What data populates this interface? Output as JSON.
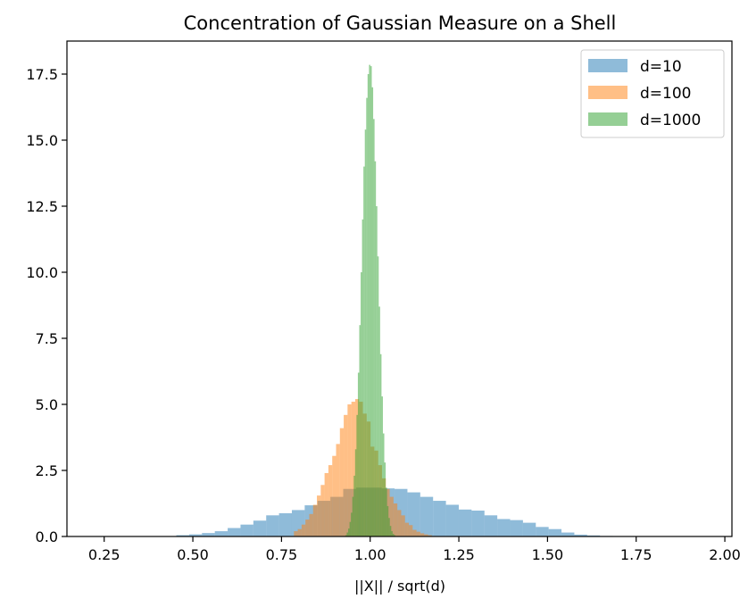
{
  "chart_data": {
    "type": "bar",
    "title": "Concentration of Gaussian Measure on a Shell",
    "xlabel": "||X|| / sqrt(d)",
    "ylabel": "",
    "xlim": [
      0.145,
      2.02
    ],
    "ylim": [
      0,
      18.75
    ],
    "xticks": [
      0.25,
      0.5,
      0.75,
      1.0,
      1.25,
      1.5,
      1.75,
      2.0
    ],
    "xtick_labels": [
      "0.25",
      "0.50",
      "0.75",
      "1.00",
      "1.25",
      "1.50",
      "1.75",
      "2.00"
    ],
    "yticks": [
      0,
      2.5,
      5,
      7.5,
      10,
      12.5,
      15,
      17.5
    ],
    "ytick_labels": [
      "0.0",
      "2.5",
      "5.0",
      "7.5",
      "10.0",
      "12.5",
      "15.0",
      "17.5"
    ],
    "legend_position": "top-right",
    "series": [
      {
        "name": "d=10",
        "color": "#1f77b4",
        "bin_start": 0.2,
        "bin_width": 0.0362,
        "values": [
          0.01,
          0.0,
          0.0,
          0.0,
          0.0,
          0.0,
          0.0,
          0.05,
          0.08,
          0.13,
          0.2,
          0.32,
          0.45,
          0.6,
          0.8,
          0.88,
          1.0,
          1.18,
          1.35,
          1.5,
          1.8,
          1.85,
          1.85,
          1.82,
          1.8,
          1.67,
          1.5,
          1.35,
          1.2,
          1.02,
          0.98,
          0.8,
          0.66,
          0.62,
          0.52,
          0.36,
          0.28,
          0.15,
          0.07,
          0.04,
          0.02,
          0.01,
          0.01,
          0.0,
          0.0,
          0.0,
          0.0,
          0.0,
          0.0,
          0.01
        ]
      },
      {
        "name": "d=100",
        "color": "#ff7f0e",
        "bin_start": 0.785,
        "bin_width": 0.0108,
        "values": [
          0.2,
          0.28,
          0.45,
          0.64,
          0.85,
          1.2,
          1.55,
          1.95,
          2.4,
          2.7,
          3.05,
          3.5,
          4.1,
          4.6,
          5.0,
          5.1,
          5.2,
          5.1,
          4.65,
          4.35,
          3.4,
          3.25,
          2.7,
          2.2,
          1.8,
          1.5,
          1.25,
          1.0,
          0.8,
          0.52,
          0.43,
          0.25,
          0.18,
          0.12,
          0.08,
          0.05,
          0.02
        ]
      },
      {
        "name": "d=1000",
        "color": "#2ca02c",
        "bin_start": 0.93,
        "bin_width": 0.00392,
        "values": [
          0.05,
          0.15,
          0.3,
          0.55,
          0.9,
          1.5,
          2.3,
          3.3,
          4.6,
          6.2,
          8.0,
          10.0,
          12.0,
          14.0,
          15.4,
          16.6,
          17.5,
          17.85,
          17.8,
          17.0,
          15.8,
          14.2,
          12.5,
          10.6,
          8.7,
          6.9,
          5.3,
          3.9,
          2.8,
          1.85,
          1.15,
          0.7,
          0.4,
          0.2,
          0.1,
          0.05
        ]
      }
    ]
  }
}
